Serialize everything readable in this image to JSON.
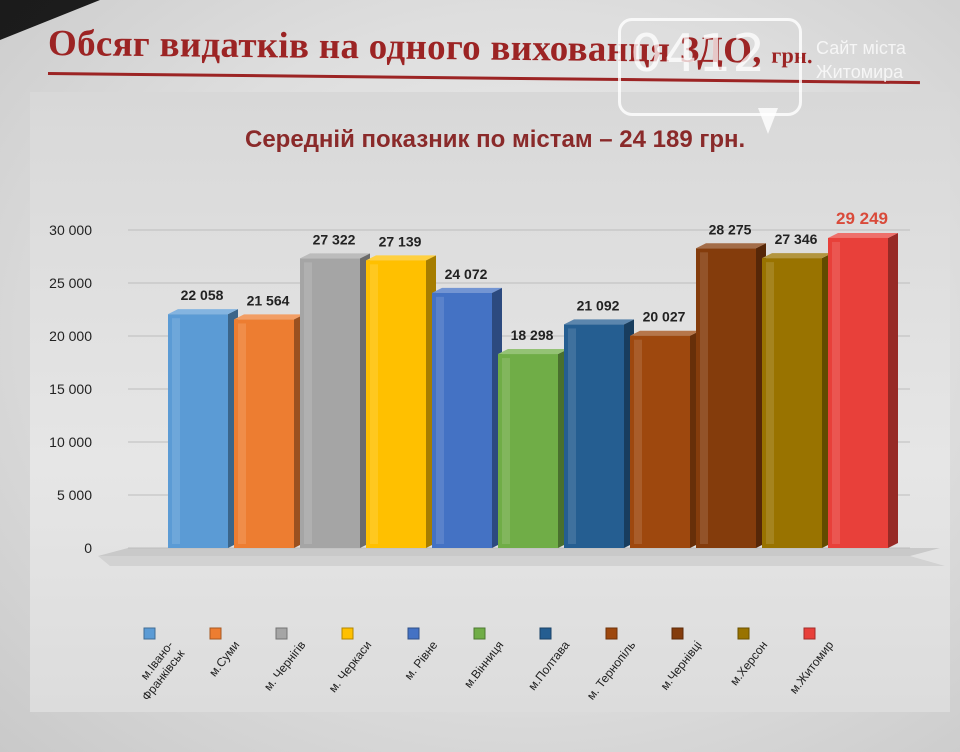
{
  "page": {
    "title": "Обсяг видатків на одного вихованця ЗДО,",
    "title_unit": "грн.",
    "subtitle": "Середній показник по містам – 24 189 грн.",
    "watermark": {
      "number": "0412",
      "line1": "Сайт міста",
      "line2": "Житомира"
    }
  },
  "chart_data": {
    "type": "bar",
    "title": "Обсяг видатків на одного вихованця ЗДО, грн.",
    "subtitle": "Середній показник по містам – 24 189 грн.",
    "categories": [
      "м.Івано-Франківськ",
      "м.Суми",
      "м. Чернігів",
      "м. Черкаси",
      "м. Рівне",
      "м.Вінниця",
      "м.Полтава",
      "м. Тернопіль",
      "м.Чернівці",
      "м.Херсон",
      "м.Житомир"
    ],
    "category_lines": [
      [
        "м.Івано-",
        "Франківськ"
      ],
      [
        "м.Суми"
      ],
      [
        "м. Чернігів"
      ],
      [
        "м. Черкаси"
      ],
      [
        "м. Рівне"
      ],
      [
        "м.Вінниця"
      ],
      [
        "м.Полтава"
      ],
      [
        "м. Тернопіль"
      ],
      [
        "м.Чернівці"
      ],
      [
        "м.Херсон"
      ],
      [
        "м.Житомир"
      ]
    ],
    "values": [
      22058,
      21564,
      27322,
      27139,
      24072,
      18298,
      21092,
      20027,
      28275,
      27346,
      29249
    ],
    "value_labels": [
      "22 058",
      "21 564",
      "27 322",
      "27 139",
      "24 072",
      "18 298",
      "21 092",
      "20 027",
      "28 275",
      "27 346",
      "29 249"
    ],
    "colors": [
      "#5b9bd5",
      "#ed7d31",
      "#a5a5a5",
      "#ffc000",
      "#4472c4",
      "#70ad47",
      "#255e91",
      "#9e480e",
      "#843c0c",
      "#997300",
      "#e8403a"
    ],
    "highlight_index": 10,
    "highlight_label_color": "#d94a3a",
    "yticks": [
      0,
      5000,
      10000,
      15000,
      20000,
      25000,
      30000
    ],
    "ytick_labels": [
      "0",
      "5 000",
      "10 000",
      "15 000",
      "20 000",
      "25 000",
      "30 000"
    ],
    "ylim": [
      0,
      30000
    ],
    "grid": true,
    "legend_position": "bottom"
  }
}
